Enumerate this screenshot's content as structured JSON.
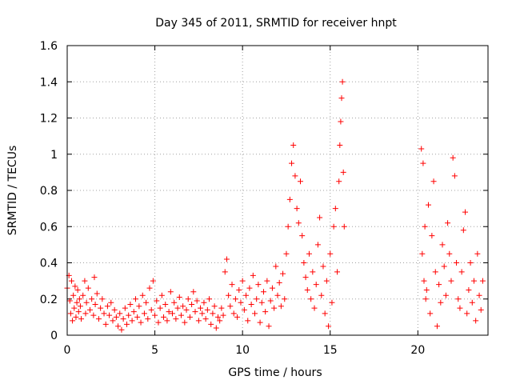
{
  "chart_data": {
    "type": "scatter",
    "title": "Day 345 of 2011, SRMTID for receiver hnpt",
    "xlabel": "GPS time / hours",
    "ylabel": "SRMTID / TECUs",
    "xlim": [
      0,
      24
    ],
    "ylim": [
      0,
      1.6
    ],
    "xticks": [
      0,
      5,
      10,
      15,
      20
    ],
    "xtick_labels": [
      "0",
      "5",
      "10",
      "15",
      "20"
    ],
    "yticks": [
      0,
      0.2,
      0.4,
      0.6,
      0.8,
      1,
      1.2,
      1.4,
      1.6
    ],
    "ytick_labels": [
      "0",
      "0.2",
      "0.4",
      "0.6",
      "0.8",
      "1",
      "1.2",
      "1.4",
      "1.6"
    ],
    "grid": true,
    "marker": "plus",
    "color": "#ff0000",
    "series": [
      {
        "name": "SRMTID",
        "points": [
          [
            0.0,
            0.26
          ],
          [
            0.1,
            0.33
          ],
          [
            0.15,
            0.19
          ],
          [
            0.2,
            0.12
          ],
          [
            0.25,
            0.3
          ],
          [
            0.3,
            0.08
          ],
          [
            0.35,
            0.22
          ],
          [
            0.4,
            0.15
          ],
          [
            0.45,
            0.27
          ],
          [
            0.5,
            0.1
          ],
          [
            0.55,
            0.18
          ],
          [
            0.6,
            0.25
          ],
          [
            0.65,
            0.13
          ],
          [
            0.7,
            0.2
          ],
          [
            0.75,
            0.16
          ],
          [
            0.8,
            0.09
          ],
          [
            0.9,
            0.22
          ],
          [
            1.0,
            0.3
          ],
          [
            1.05,
            0.12
          ],
          [
            1.1,
            0.18
          ],
          [
            1.2,
            0.26
          ],
          [
            1.3,
            0.14
          ],
          [
            1.4,
            0.2
          ],
          [
            1.5,
            0.11
          ],
          [
            1.55,
            0.32
          ],
          [
            1.6,
            0.17
          ],
          [
            1.7,
            0.23
          ],
          [
            1.8,
            0.09
          ],
          [
            1.9,
            0.15
          ],
          [
            2.0,
            0.2
          ],
          [
            2.1,
            0.12
          ],
          [
            2.2,
            0.06
          ],
          [
            2.3,
            0.16
          ],
          [
            2.4,
            0.11
          ],
          [
            2.5,
            0.18
          ],
          [
            2.6,
            0.08
          ],
          [
            2.7,
            0.14
          ],
          [
            2.8,
            0.1
          ],
          [
            2.9,
            0.05
          ],
          [
            3.0,
            0.12
          ],
          [
            3.1,
            0.03
          ],
          [
            3.2,
            0.09
          ],
          [
            3.3,
            0.15
          ],
          [
            3.4,
            0.06
          ],
          [
            3.5,
            0.11
          ],
          [
            3.6,
            0.17
          ],
          [
            3.7,
            0.08
          ],
          [
            3.8,
            0.13
          ],
          [
            3.9,
            0.2
          ],
          [
            4.0,
            0.1
          ],
          [
            4.1,
            0.16
          ],
          [
            4.2,
            0.07
          ],
          [
            4.3,
            0.22
          ],
          [
            4.4,
            0.12
          ],
          [
            4.5,
            0.18
          ],
          [
            4.6,
            0.09
          ],
          [
            4.7,
            0.26
          ],
          [
            4.8,
            0.14
          ],
          [
            4.9,
            0.3
          ],
          [
            5.0,
            0.11
          ],
          [
            5.1,
            0.19
          ],
          [
            5.2,
            0.07
          ],
          [
            5.3,
            0.15
          ],
          [
            5.4,
            0.22
          ],
          [
            5.5,
            0.1
          ],
          [
            5.6,
            0.17
          ],
          [
            5.7,
            0.08
          ],
          [
            5.8,
            0.13
          ],
          [
            5.9,
            0.24
          ],
          [
            6.0,
            0.12
          ],
          [
            6.1,
            0.18
          ],
          [
            6.2,
            0.09
          ],
          [
            6.3,
            0.15
          ],
          [
            6.4,
            0.21
          ],
          [
            6.5,
            0.11
          ],
          [
            6.6,
            0.16
          ],
          [
            6.7,
            0.07
          ],
          [
            6.8,
            0.14
          ],
          [
            6.9,
            0.2
          ],
          [
            7.0,
            0.1
          ],
          [
            7.1,
            0.17
          ],
          [
            7.2,
            0.24
          ],
          [
            7.3,
            0.13
          ],
          [
            7.4,
            0.19
          ],
          [
            7.5,
            0.08
          ],
          [
            7.6,
            0.15
          ],
          [
            7.7,
            0.12
          ],
          [
            7.8,
            0.18
          ],
          [
            7.9,
            0.09
          ],
          [
            8.0,
            0.14
          ],
          [
            8.1,
            0.2
          ],
          [
            8.2,
            0.06
          ],
          [
            8.3,
            0.12
          ],
          [
            8.4,
            0.16
          ],
          [
            8.5,
            0.04
          ],
          [
            8.6,
            0.1
          ],
          [
            8.7,
            0.08
          ],
          [
            8.8,
            0.15
          ],
          [
            8.9,
            0.11
          ],
          [
            9.0,
            0.35
          ],
          [
            9.1,
            0.42
          ],
          [
            9.2,
            0.22
          ],
          [
            9.3,
            0.16
          ],
          [
            9.4,
            0.28
          ],
          [
            9.5,
            0.12
          ],
          [
            9.6,
            0.2
          ],
          [
            9.7,
            0.1
          ],
          [
            9.8,
            0.25
          ],
          [
            9.9,
            0.18
          ],
          [
            10.0,
            0.3
          ],
          [
            10.1,
            0.14
          ],
          [
            10.2,
            0.22
          ],
          [
            10.3,
            0.08
          ],
          [
            10.4,
            0.26
          ],
          [
            10.5,
            0.17
          ],
          [
            10.6,
            0.33
          ],
          [
            10.7,
            0.12
          ],
          [
            10.8,
            0.2
          ],
          [
            10.9,
            0.28
          ],
          [
            11.0,
            0.07
          ],
          [
            11.1,
            0.18
          ],
          [
            11.2,
            0.24
          ],
          [
            11.3,
            0.13
          ],
          [
            11.4,
            0.3
          ],
          [
            11.5,
            0.05
          ],
          [
            11.6,
            0.19
          ],
          [
            11.7,
            0.26
          ],
          [
            11.8,
            0.15
          ],
          [
            11.9,
            0.38
          ],
          [
            12.0,
            0.22
          ],
          [
            12.1,
            0.29
          ],
          [
            12.2,
            0.16
          ],
          [
            12.3,
            0.34
          ],
          [
            12.4,
            0.2
          ],
          [
            12.5,
            0.45
          ],
          [
            12.6,
            0.6
          ],
          [
            12.7,
            0.75
          ],
          [
            12.8,
            0.95
          ],
          [
            12.9,
            1.05
          ],
          [
            13.0,
            0.88
          ],
          [
            13.1,
            0.7
          ],
          [
            13.2,
            0.62
          ],
          [
            13.3,
            0.85
          ],
          [
            13.4,
            0.55
          ],
          [
            13.5,
            0.4
          ],
          [
            13.6,
            0.32
          ],
          [
            13.7,
            0.25
          ],
          [
            13.8,
            0.45
          ],
          [
            13.9,
            0.2
          ],
          [
            14.0,
            0.35
          ],
          [
            14.1,
            0.15
          ],
          [
            14.2,
            0.28
          ],
          [
            14.3,
            0.5
          ],
          [
            14.4,
            0.65
          ],
          [
            14.5,
            0.22
          ],
          [
            14.6,
            0.38
          ],
          [
            14.7,
            0.12
          ],
          [
            14.8,
            0.3
          ],
          [
            14.9,
            0.05
          ],
          [
            15.0,
            0.45
          ],
          [
            15.1,
            0.18
          ],
          [
            15.2,
            0.6
          ],
          [
            15.3,
            0.7
          ],
          [
            15.4,
            0.35
          ],
          [
            15.5,
            0.85
          ],
          [
            15.55,
            1.05
          ],
          [
            15.6,
            1.18
          ],
          [
            15.65,
            1.31
          ],
          [
            15.7,
            1.4
          ],
          [
            15.75,
            0.9
          ],
          [
            15.8,
            0.6
          ],
          [
            20.2,
            1.03
          ],
          [
            20.25,
            0.45
          ],
          [
            20.3,
            0.95
          ],
          [
            20.35,
            0.3
          ],
          [
            20.4,
            0.6
          ],
          [
            20.45,
            0.2
          ],
          [
            20.5,
            0.25
          ],
          [
            20.6,
            0.72
          ],
          [
            20.7,
            0.12
          ],
          [
            20.8,
            0.55
          ],
          [
            20.9,
            0.85
          ],
          [
            21.0,
            0.35
          ],
          [
            21.1,
            0.05
          ],
          [
            21.2,
            0.28
          ],
          [
            21.3,
            0.18
          ],
          [
            21.4,
            0.5
          ],
          [
            21.5,
            0.38
          ],
          [
            21.6,
            0.22
          ],
          [
            21.7,
            0.62
          ],
          [
            21.8,
            0.45
          ],
          [
            21.9,
            0.3
          ],
          [
            22.0,
            0.98
          ],
          [
            22.1,
            0.88
          ],
          [
            22.2,
            0.4
          ],
          [
            22.3,
            0.2
          ],
          [
            22.4,
            0.15
          ],
          [
            22.5,
            0.35
          ],
          [
            22.6,
            0.58
          ],
          [
            22.7,
            0.68
          ],
          [
            22.8,
            0.12
          ],
          [
            22.9,
            0.25
          ],
          [
            23.0,
            0.4
          ],
          [
            23.1,
            0.18
          ],
          [
            23.2,
            0.3
          ],
          [
            23.3,
            0.08
          ],
          [
            23.4,
            0.45
          ],
          [
            23.5,
            0.22
          ],
          [
            23.6,
            0.14
          ],
          [
            23.7,
            0.3
          ]
        ]
      }
    ]
  }
}
